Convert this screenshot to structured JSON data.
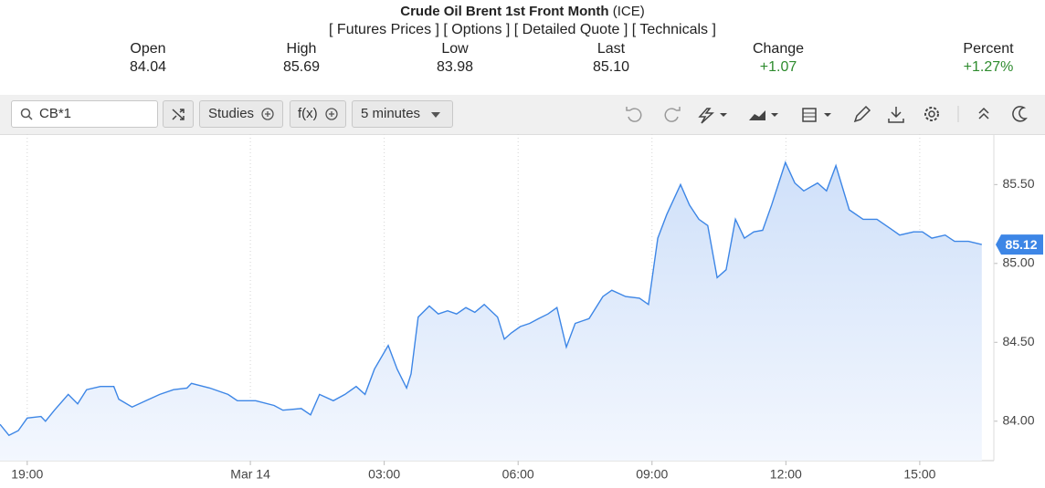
{
  "header": {
    "title": "Crude Oil Brent 1st Front Month",
    "exchange": "(ICE)",
    "links": [
      "[ Futures Prices ]",
      "[ Options ]",
      "[ Detailed Quote ]",
      "[ Technicals ]"
    ]
  },
  "quote": [
    {
      "label": "Open",
      "value": "84.04"
    },
    {
      "label": "High",
      "value": "85.69"
    },
    {
      "label": "Low",
      "value": "83.98"
    },
    {
      "label": "Last",
      "value": "85.10"
    },
    {
      "label": "Change",
      "value": "+1.07"
    },
    {
      "label": "Percent",
      "value": "+1.27%"
    }
  ],
  "toolbar": {
    "symbol": "CB*1",
    "studies": "Studies",
    "fx": "f(x)",
    "interval": "5 minutes"
  },
  "chart_data": {
    "type": "area",
    "grid": "x",
    "x": [
      18.39,
      18.59,
      18.8,
      19.0,
      19.31,
      19.41,
      19.61,
      19.92,
      20.13,
      20.33,
      20.64,
      20.94,
      21.05,
      21.35,
      21.66,
      21.97,
      22.28,
      22.58,
      22.68,
      23.09,
      23.5,
      23.71,
      24.12,
      24.53,
      24.73,
      25.14,
      25.35,
      25.55,
      25.86,
      26.12,
      26.37,
      26.57,
      26.78,
      27.09,
      27.29,
      27.5,
      27.6,
      27.76,
      28.01,
      28.21,
      28.42,
      28.62,
      28.83,
      29.03,
      29.24,
      29.54,
      29.69,
      29.85,
      30.05,
      30.26,
      30.46,
      30.67,
      30.87,
      31.08,
      31.28,
      31.59,
      31.9,
      32.1,
      32.41,
      32.72,
      32.92,
      33.13,
      33.33,
      33.64,
      33.84,
      34.05,
      34.25,
      34.46,
      34.66,
      34.87,
      35.07,
      35.28,
      35.48,
      35.68,
      35.99,
      36.2,
      36.4,
      36.71,
      36.91,
      37.12,
      37.42,
      37.73,
      38.04,
      38.35,
      38.55,
      38.86,
      39.06,
      39.27,
      39.57,
      39.78,
      40.09,
      40.39
    ],
    "series": [
      {
        "color": "#3d86e6",
        "values": [
          83.98,
          83.91,
          83.94,
          84.02,
          84.03,
          84.0,
          84.07,
          84.17,
          84.11,
          84.2,
          84.22,
          84.22,
          84.14,
          84.09,
          84.13,
          84.17,
          84.2,
          84.21,
          84.24,
          84.21,
          84.17,
          84.13,
          84.13,
          84.1,
          84.07,
          84.08,
          84.04,
          84.17,
          84.13,
          84.17,
          84.22,
          84.17,
          84.33,
          84.48,
          84.33,
          84.21,
          84.3,
          84.66,
          84.73,
          84.68,
          84.7,
          84.68,
          84.72,
          84.69,
          84.74,
          84.66,
          84.52,
          84.56,
          84.6,
          84.62,
          84.65,
          84.68,
          84.72,
          84.47,
          84.62,
          84.65,
          84.79,
          84.83,
          84.79,
          84.78,
          84.74,
          85.16,
          85.31,
          85.5,
          85.37,
          85.28,
          85.24,
          84.91,
          84.96,
          85.28,
          85.16,
          85.2,
          85.21,
          85.37,
          85.64,
          85.51,
          85.46,
          85.51,
          85.46,
          85.62,
          85.34,
          85.28,
          85.28,
          85.22,
          85.18,
          85.2,
          85.2,
          85.16,
          85.18,
          85.14,
          85.14,
          85.12
        ]
      }
    ],
    "xlim": [
      18.39,
      40.66
    ],
    "xticks": [
      {
        "value": 19,
        "label": "19:00"
      },
      {
        "value": 24,
        "label": "Mar 14"
      },
      {
        "value": 27,
        "label": "03:00"
      },
      {
        "value": 30,
        "label": "06:00"
      },
      {
        "value": 33,
        "label": "09:00"
      },
      {
        "value": 36,
        "label": "12:00"
      },
      {
        "value": 39,
        "label": "15:00"
      }
    ],
    "ylim": [
      83.75,
      85.82
    ],
    "yticks": [
      {
        "value": 84,
        "label": "84.00"
      },
      {
        "value": 84.5,
        "label": "84.50"
      },
      {
        "value": 85,
        "label": "85.00"
      },
      {
        "value": 85.5,
        "label": "85.50"
      }
    ]
  }
}
